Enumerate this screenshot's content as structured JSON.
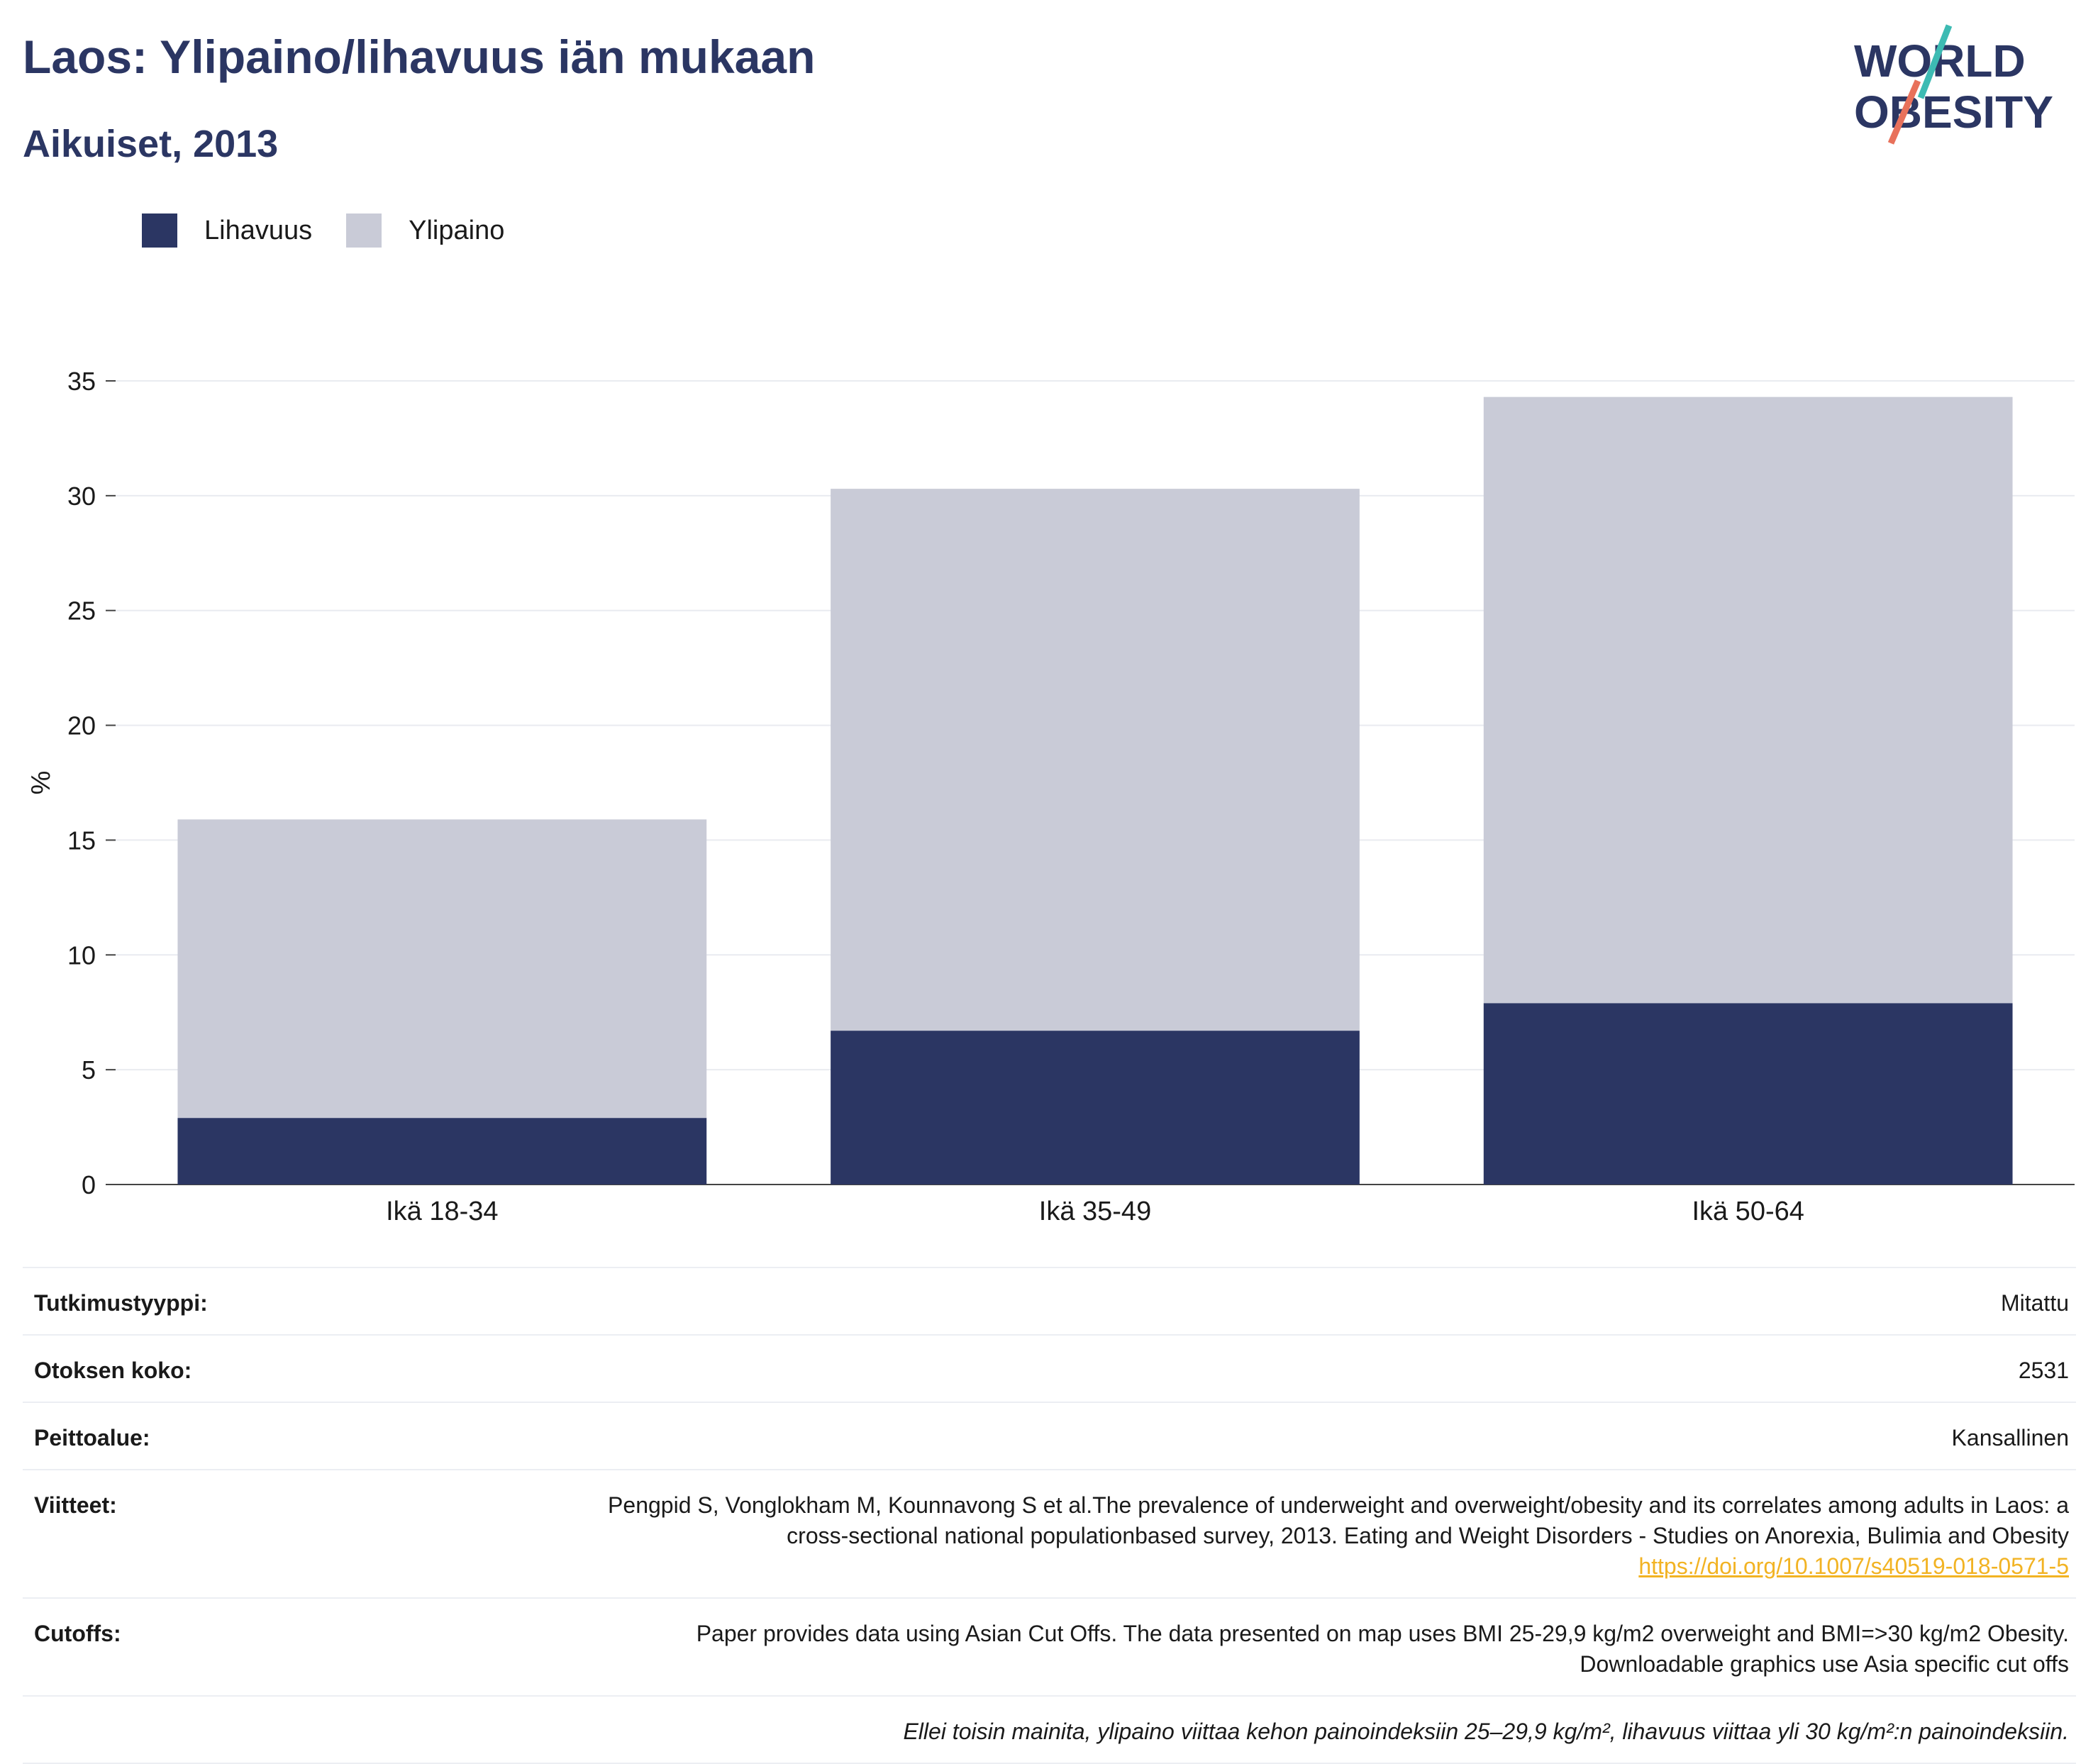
{
  "header": {
    "title": "Laos: Ylipaino/lihavuus iän mukaan",
    "subtitle": "Aikuiset, 2013"
  },
  "logo": {
    "line1": "WORLD",
    "line2": "OBESITY"
  },
  "legend": [
    {
      "label": "Lihavuus",
      "color": "#2b3663"
    },
    {
      "label": "Ylipaino",
      "color": "#c9cbd7"
    }
  ],
  "chart_data": {
    "type": "bar",
    "stacked": true,
    "categories": [
      "Ikä 18-34",
      "Ikä 35-49",
      "Ikä 50-64"
    ],
    "series": [
      {
        "name": "Lihavuus",
        "values": [
          2.9,
          6.7,
          7.9
        ],
        "color": "#2b3663"
      },
      {
        "name": "Ylipaino",
        "values": [
          13.0,
          23.6,
          26.4
        ],
        "color": "#c9cbd7"
      }
    ],
    "ylabel": "%",
    "ylim": [
      0,
      35
    ],
    "yticks": [
      0,
      5,
      10,
      15,
      20,
      25,
      30,
      35
    ],
    "grid": true,
    "legend_position": "top-left"
  },
  "info": {
    "rows": [
      {
        "key": "Tutkimustyyppi:",
        "value": "Mitattu"
      },
      {
        "key": "Otoksen koko:",
        "value": "2531"
      },
      {
        "key": "Peittoalue:",
        "value": "Kansallinen"
      },
      {
        "key": "Viitteet:",
        "value": "Pengpid S, Vonglokham M, Kounnavong S et al.The prevalence of underweight and overweight/obesity and its correlates among adults in Laos: a cross-sectional national populationbased survey, 2013. Eating and Weight Disorders - Studies on Anorexia, Bulimia and Obesity",
        "link": "https://doi.org/10.1007/s40519-018-0571-5"
      },
      {
        "key": "Cutoffs:",
        "value": "Paper provides data using Asian Cut Offs. The data presented on map uses BMI 25-29,9 kg/m2 overweight and BMI=>30 kg/m2 Obesity. Downloadable graphics use Asia specific cut offs"
      }
    ],
    "note": "Ellei toisin mainita, ylipaino viittaa kehon painoindeksiin 25–29,9 kg/m², lihavuus viittaa yli 30 kg/m²:n painoindeksiin."
  }
}
